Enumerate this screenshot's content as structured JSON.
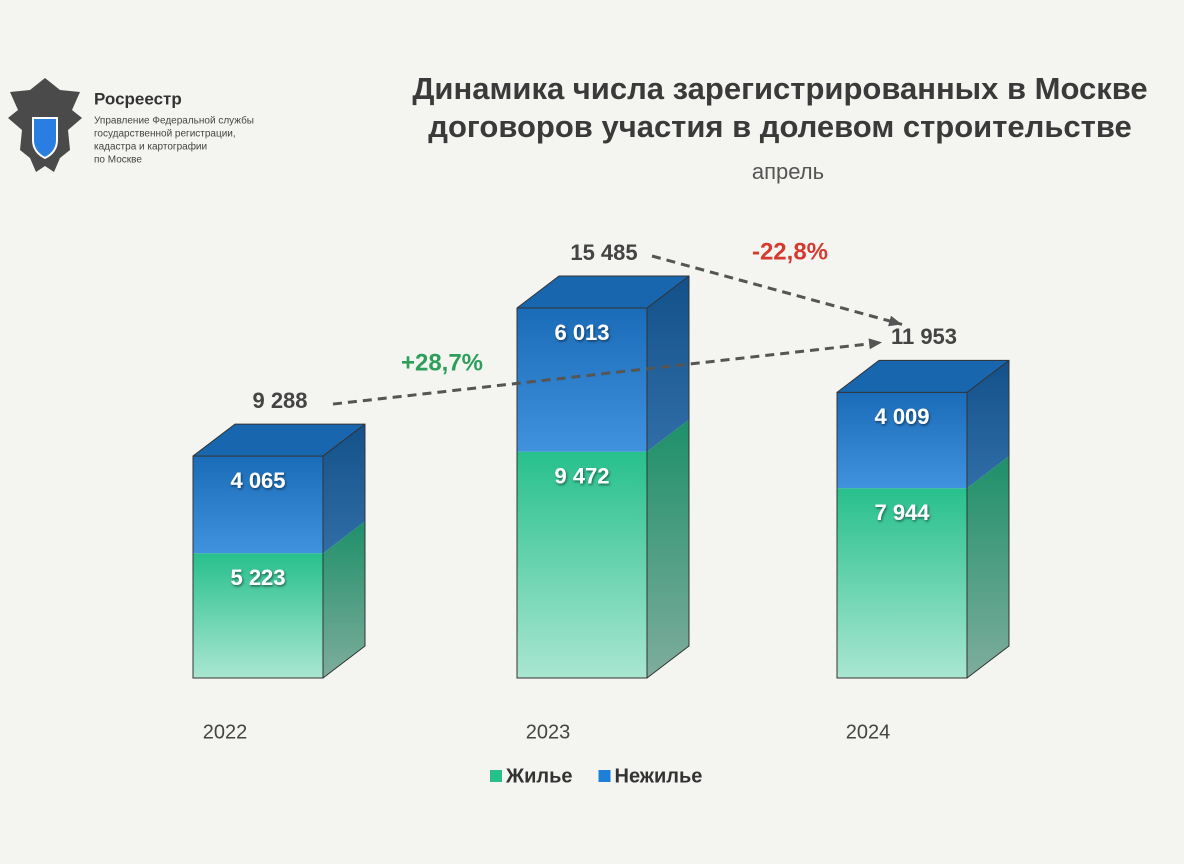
{
  "logo": {
    "name": "Росреестр",
    "lines": [
      "Управление Федеральной службы",
      "государственной регистрации,",
      "кадастра и картографии",
      "по Москве"
    ]
  },
  "chart_data": {
    "type": "bar",
    "stacked": true,
    "title": [
      "Динамика числа зарегистрированных в Москве",
      "договоров участия в долевом строительстве"
    ],
    "subtitle": "апрель",
    "categories": [
      "2022",
      "2023",
      "2024"
    ],
    "series": [
      {
        "name": "Жилье",
        "color": "#27c08c",
        "values": [
          5223,
          9472,
          7944
        ],
        "value_labels": [
          "5 223",
          "9 472",
          "7 944"
        ]
      },
      {
        "name": "Нежилье",
        "color": "#1e7fd8",
        "values": [
          4065,
          6013,
          4009
        ],
        "value_labels": [
          "4 065",
          "6 013",
          "4 009"
        ]
      }
    ],
    "totals": [
      9288,
      15485,
      11953
    ],
    "total_labels": [
      "9 288",
      "15 485",
      "11 953"
    ],
    "annotations": [
      {
        "text": "+28,7%",
        "color": "#2e9e5b"
      },
      {
        "text": "-22,8%",
        "color": "#d43a2e"
      }
    ],
    "legend": "bottom"
  }
}
